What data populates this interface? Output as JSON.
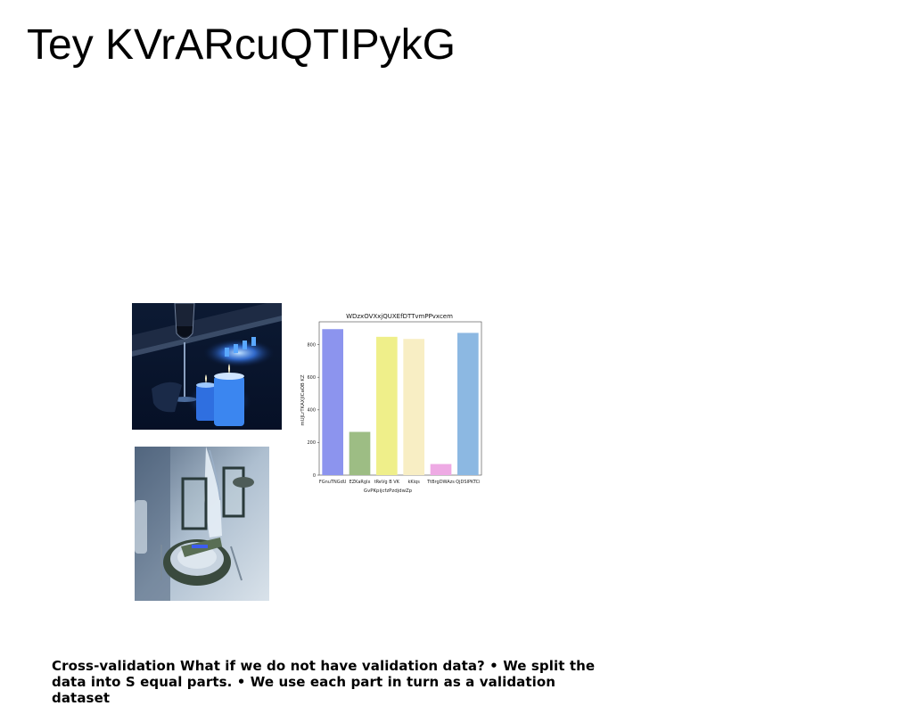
{
  "slide": {
    "title": "Tey KVrARcuQTIPykG",
    "caption": "Cross-validation What if we do not have validation data? • We split the data into S equal parts. • We use each part in turn as a validation dataset"
  },
  "images": {
    "candles_photo": "photo of blue candles and a wine glass",
    "table_photo": "photo of a table setting with lanterns"
  },
  "chart_data": {
    "type": "bar",
    "title": "WDzxOVXxjQUXEfDTTvmPPvxcem",
    "xlabel": "GvPKpijcfzPzdjdwZp",
    "ylabel": "mUJLrTKAXJICaOB KZ",
    "categories": [
      "FGnuTNGdU",
      "EZKaRglx",
      "tReVg B VK",
      "kKiqs",
      "TtBrgDWAzs",
      "QjDSIPKTCi"
    ],
    "values": [
      895,
      265,
      848,
      835,
      68,
      872
    ],
    "colors": [
      "#8c94ee",
      "#9dbd84",
      "#efef8a",
      "#f8eec4",
      "#eeaae4",
      "#8cb8e2"
    ],
    "ylim": [
      0,
      940
    ],
    "yticks": [
      0,
      200,
      400,
      600,
      800
    ],
    "grid": false
  }
}
